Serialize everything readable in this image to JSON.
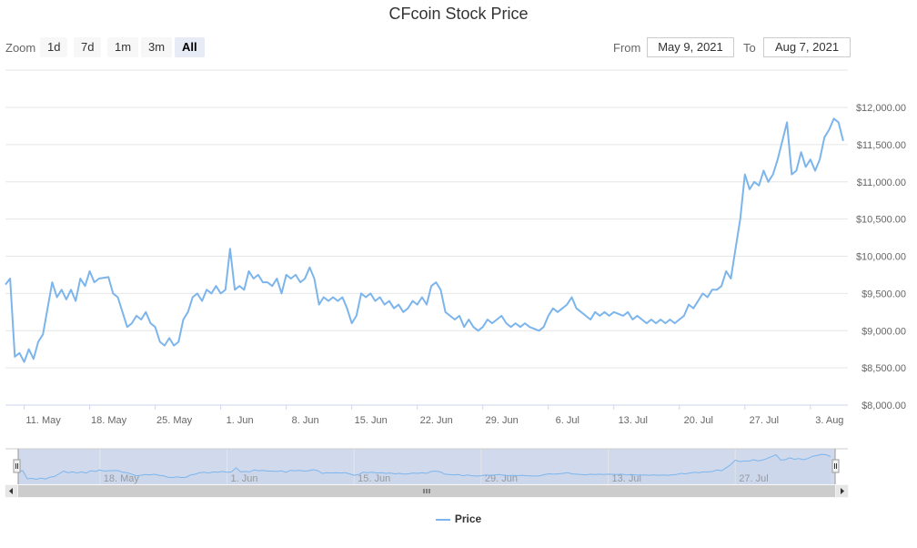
{
  "chart_data": {
    "type": "line",
    "title": "CFcoin Stock Price",
    "xlabel": "",
    "ylabel": "",
    "x_ticks": [
      "11. May",
      "18. May",
      "25. May",
      "1. Jun",
      "8. Jun",
      "15. Jun",
      "22. Jun",
      "29. Jun",
      "6. Jul",
      "13. Jul",
      "20. Jul",
      "27. Jul",
      "3. Aug"
    ],
    "navigator_ticks": [
      "18. May",
      "1. Jun",
      "15. Jun",
      "29. Jun",
      "13. Jul",
      "27. Jul"
    ],
    "y_ticks": [
      "$8,000.00",
      "$8,500.00",
      "$9,000.00",
      "$9,500.00",
      "$10,000.00",
      "$10,500.00",
      "$11,000.00",
      "$11,500.00",
      "$12,000.00"
    ],
    "ylim": [
      8000,
      12000
    ],
    "xlim": [
      "2021-05-09",
      "2021-08-07"
    ],
    "grid": true,
    "legend_position": "bottom-center",
    "series": [
      {
        "name": "Price",
        "color": "#7cb5ec",
        "points": [
          [
            "2021-05-09",
            9620
          ],
          [
            "2021-05-09",
            9700
          ],
          [
            "2021-05-10",
            8650
          ],
          [
            "2021-05-10",
            8700
          ],
          [
            "2021-05-11",
            8580
          ],
          [
            "2021-05-11",
            8750
          ],
          [
            "2021-05-12",
            8620
          ],
          [
            "2021-05-12",
            8850
          ],
          [
            "2021-05-13",
            8950
          ],
          [
            "2021-05-13",
            9300
          ],
          [
            "2021-05-14",
            9650
          ],
          [
            "2021-05-14",
            9450
          ],
          [
            "2021-05-15",
            9550
          ],
          [
            "2021-05-15",
            9420
          ],
          [
            "2021-05-16",
            9550
          ],
          [
            "2021-05-16",
            9400
          ],
          [
            "2021-05-17",
            9700
          ],
          [
            "2021-05-17",
            9600
          ],
          [
            "2021-05-18",
            9800
          ],
          [
            "2021-05-18",
            9650
          ],
          [
            "2021-05-19",
            9700
          ],
          [
            "2021-05-20",
            9720
          ],
          [
            "2021-05-20",
            9500
          ],
          [
            "2021-05-21",
            9450
          ],
          [
            "2021-05-22",
            9050
          ],
          [
            "2021-05-22",
            9100
          ],
          [
            "2021-05-23",
            9200
          ],
          [
            "2021-05-23",
            9150
          ],
          [
            "2021-05-24",
            9250
          ],
          [
            "2021-05-24",
            9100
          ],
          [
            "2021-05-25",
            9050
          ],
          [
            "2021-05-25",
            8850
          ],
          [
            "2021-05-26",
            8800
          ],
          [
            "2021-05-26",
            8900
          ],
          [
            "2021-05-27",
            8800
          ],
          [
            "2021-05-27",
            8850
          ],
          [
            "2021-05-28",
            9150
          ],
          [
            "2021-05-28",
            9250
          ],
          [
            "2021-05-29",
            9450
          ],
          [
            "2021-05-29",
            9500
          ],
          [
            "2021-05-30",
            9400
          ],
          [
            "2021-05-30",
            9550
          ],
          [
            "2021-05-31",
            9500
          ],
          [
            "2021-05-31",
            9600
          ],
          [
            "2021-06-01",
            9500
          ],
          [
            "2021-06-01",
            9550
          ],
          [
            "2021-06-02",
            10100
          ],
          [
            "2021-06-02",
            9550
          ],
          [
            "2021-06-03",
            9600
          ],
          [
            "2021-06-03",
            9550
          ],
          [
            "2021-06-04",
            9800
          ],
          [
            "2021-06-04",
            9700
          ],
          [
            "2021-06-05",
            9750
          ],
          [
            "2021-06-05",
            9650
          ],
          [
            "2021-06-06",
            9650
          ],
          [
            "2021-06-06",
            9600
          ],
          [
            "2021-06-07",
            9700
          ],
          [
            "2021-06-07",
            9500
          ],
          [
            "2021-06-08",
            9750
          ],
          [
            "2021-06-08",
            9700
          ],
          [
            "2021-06-09",
            9750
          ],
          [
            "2021-06-09",
            9650
          ],
          [
            "2021-06-10",
            9700
          ],
          [
            "2021-06-10",
            9850
          ],
          [
            "2021-06-11",
            9700
          ],
          [
            "2021-06-11",
            9350
          ],
          [
            "2021-06-12",
            9450
          ],
          [
            "2021-06-12",
            9400
          ],
          [
            "2021-06-13",
            9450
          ],
          [
            "2021-06-13",
            9400
          ],
          [
            "2021-06-14",
            9450
          ],
          [
            "2021-06-14",
            9300
          ],
          [
            "2021-06-15",
            9100
          ],
          [
            "2021-06-15",
            9200
          ],
          [
            "2021-06-16",
            9500
          ],
          [
            "2021-06-16",
            9450
          ],
          [
            "2021-06-17",
            9500
          ],
          [
            "2021-06-17",
            9400
          ],
          [
            "2021-06-18",
            9450
          ],
          [
            "2021-06-18",
            9350
          ],
          [
            "2021-06-19",
            9400
          ],
          [
            "2021-06-19",
            9300
          ],
          [
            "2021-06-20",
            9350
          ],
          [
            "2021-06-20",
            9250
          ],
          [
            "2021-06-21",
            9300
          ],
          [
            "2021-06-21",
            9400
          ],
          [
            "2021-06-22",
            9350
          ],
          [
            "2021-06-22",
            9450
          ],
          [
            "2021-06-23",
            9350
          ],
          [
            "2021-06-23",
            9600
          ],
          [
            "2021-06-24",
            9650
          ],
          [
            "2021-06-24",
            9550
          ],
          [
            "2021-06-25",
            9250
          ],
          [
            "2021-06-25",
            9200
          ],
          [
            "2021-06-26",
            9150
          ],
          [
            "2021-06-26",
            9200
          ],
          [
            "2021-06-27",
            9050
          ],
          [
            "2021-06-27",
            9150
          ],
          [
            "2021-06-28",
            9050
          ],
          [
            "2021-06-28",
            9000
          ],
          [
            "2021-06-29",
            9050
          ],
          [
            "2021-06-29",
            9150
          ],
          [
            "2021-06-30",
            9100
          ],
          [
            "2021-06-30",
            9150
          ],
          [
            "2021-07-01",
            9200
          ],
          [
            "2021-07-01",
            9100
          ],
          [
            "2021-07-02",
            9050
          ],
          [
            "2021-07-02",
            9100
          ],
          [
            "2021-07-03",
            9050
          ],
          [
            "2021-07-03",
            9100
          ],
          [
            "2021-07-04",
            9050
          ],
          [
            "2021-07-05",
            9000
          ],
          [
            "2021-07-05",
            9050
          ],
          [
            "2021-07-06",
            9200
          ],
          [
            "2021-07-06",
            9300
          ],
          [
            "2021-07-07",
            9250
          ],
          [
            "2021-07-07",
            9300
          ],
          [
            "2021-07-08",
            9350
          ],
          [
            "2021-07-08",
            9450
          ],
          [
            "2021-07-09",
            9300
          ],
          [
            "2021-07-09",
            9250
          ],
          [
            "2021-07-10",
            9200
          ],
          [
            "2021-07-10",
            9150
          ],
          [
            "2021-07-11",
            9250
          ],
          [
            "2021-07-11",
            9200
          ],
          [
            "2021-07-12",
            9250
          ],
          [
            "2021-07-12",
            9200
          ],
          [
            "2021-07-13",
            9250
          ],
          [
            "2021-07-14",
            9200
          ],
          [
            "2021-07-14",
            9250
          ],
          [
            "2021-07-15",
            9150
          ],
          [
            "2021-07-15",
            9200
          ],
          [
            "2021-07-16",
            9150
          ],
          [
            "2021-07-16",
            9100
          ],
          [
            "2021-07-17",
            9150
          ],
          [
            "2021-07-17",
            9100
          ],
          [
            "2021-07-18",
            9150
          ],
          [
            "2021-07-18",
            9100
          ],
          [
            "2021-07-19",
            9150
          ],
          [
            "2021-07-19",
            9100
          ],
          [
            "2021-07-20",
            9150
          ],
          [
            "2021-07-20",
            9200
          ],
          [
            "2021-07-21",
            9350
          ],
          [
            "2021-07-21",
            9300
          ],
          [
            "2021-07-22",
            9400
          ],
          [
            "2021-07-22",
            9500
          ],
          [
            "2021-07-23",
            9450
          ],
          [
            "2021-07-23",
            9550
          ],
          [
            "2021-07-24",
            9550
          ],
          [
            "2021-07-24",
            9600
          ],
          [
            "2021-07-25",
            9800
          ],
          [
            "2021-07-25",
            9700
          ],
          [
            "2021-07-26",
            10100
          ],
          [
            "2021-07-26",
            10500
          ],
          [
            "2021-07-27",
            11100
          ],
          [
            "2021-07-27",
            10900
          ],
          [
            "2021-07-28",
            11000
          ],
          [
            "2021-07-28",
            10950
          ],
          [
            "2021-07-29",
            11150
          ],
          [
            "2021-07-29",
            11000
          ],
          [
            "2021-07-30",
            11100
          ],
          [
            "2021-07-30",
            11300
          ],
          [
            "2021-07-31",
            11550
          ],
          [
            "2021-07-31",
            11800
          ],
          [
            "2021-08-01",
            11100
          ],
          [
            "2021-08-01",
            11150
          ],
          [
            "2021-08-02",
            11400
          ],
          [
            "2021-08-02",
            11200
          ],
          [
            "2021-08-03",
            11300
          ],
          [
            "2021-08-03",
            11150
          ],
          [
            "2021-08-04",
            11300
          ],
          [
            "2021-08-04",
            11600
          ],
          [
            "2021-08-05",
            11700
          ],
          [
            "2021-08-05",
            11850
          ],
          [
            "2021-08-06",
            11800
          ],
          [
            "2021-08-06",
            11550
          ]
        ]
      }
    ]
  },
  "range_selector": {
    "zoom_label": "Zoom",
    "buttons": [
      {
        "label": "1d",
        "active": false
      },
      {
        "label": "7d",
        "active": false
      },
      {
        "label": "1m",
        "active": false
      },
      {
        "label": "3m",
        "active": false
      },
      {
        "label": "All",
        "active": true
      }
    ],
    "from_label": "From",
    "from_value": "May 9, 2021",
    "to_label": "To",
    "to_value": "Aug 7, 2021"
  },
  "legend": {
    "label": "Price"
  }
}
